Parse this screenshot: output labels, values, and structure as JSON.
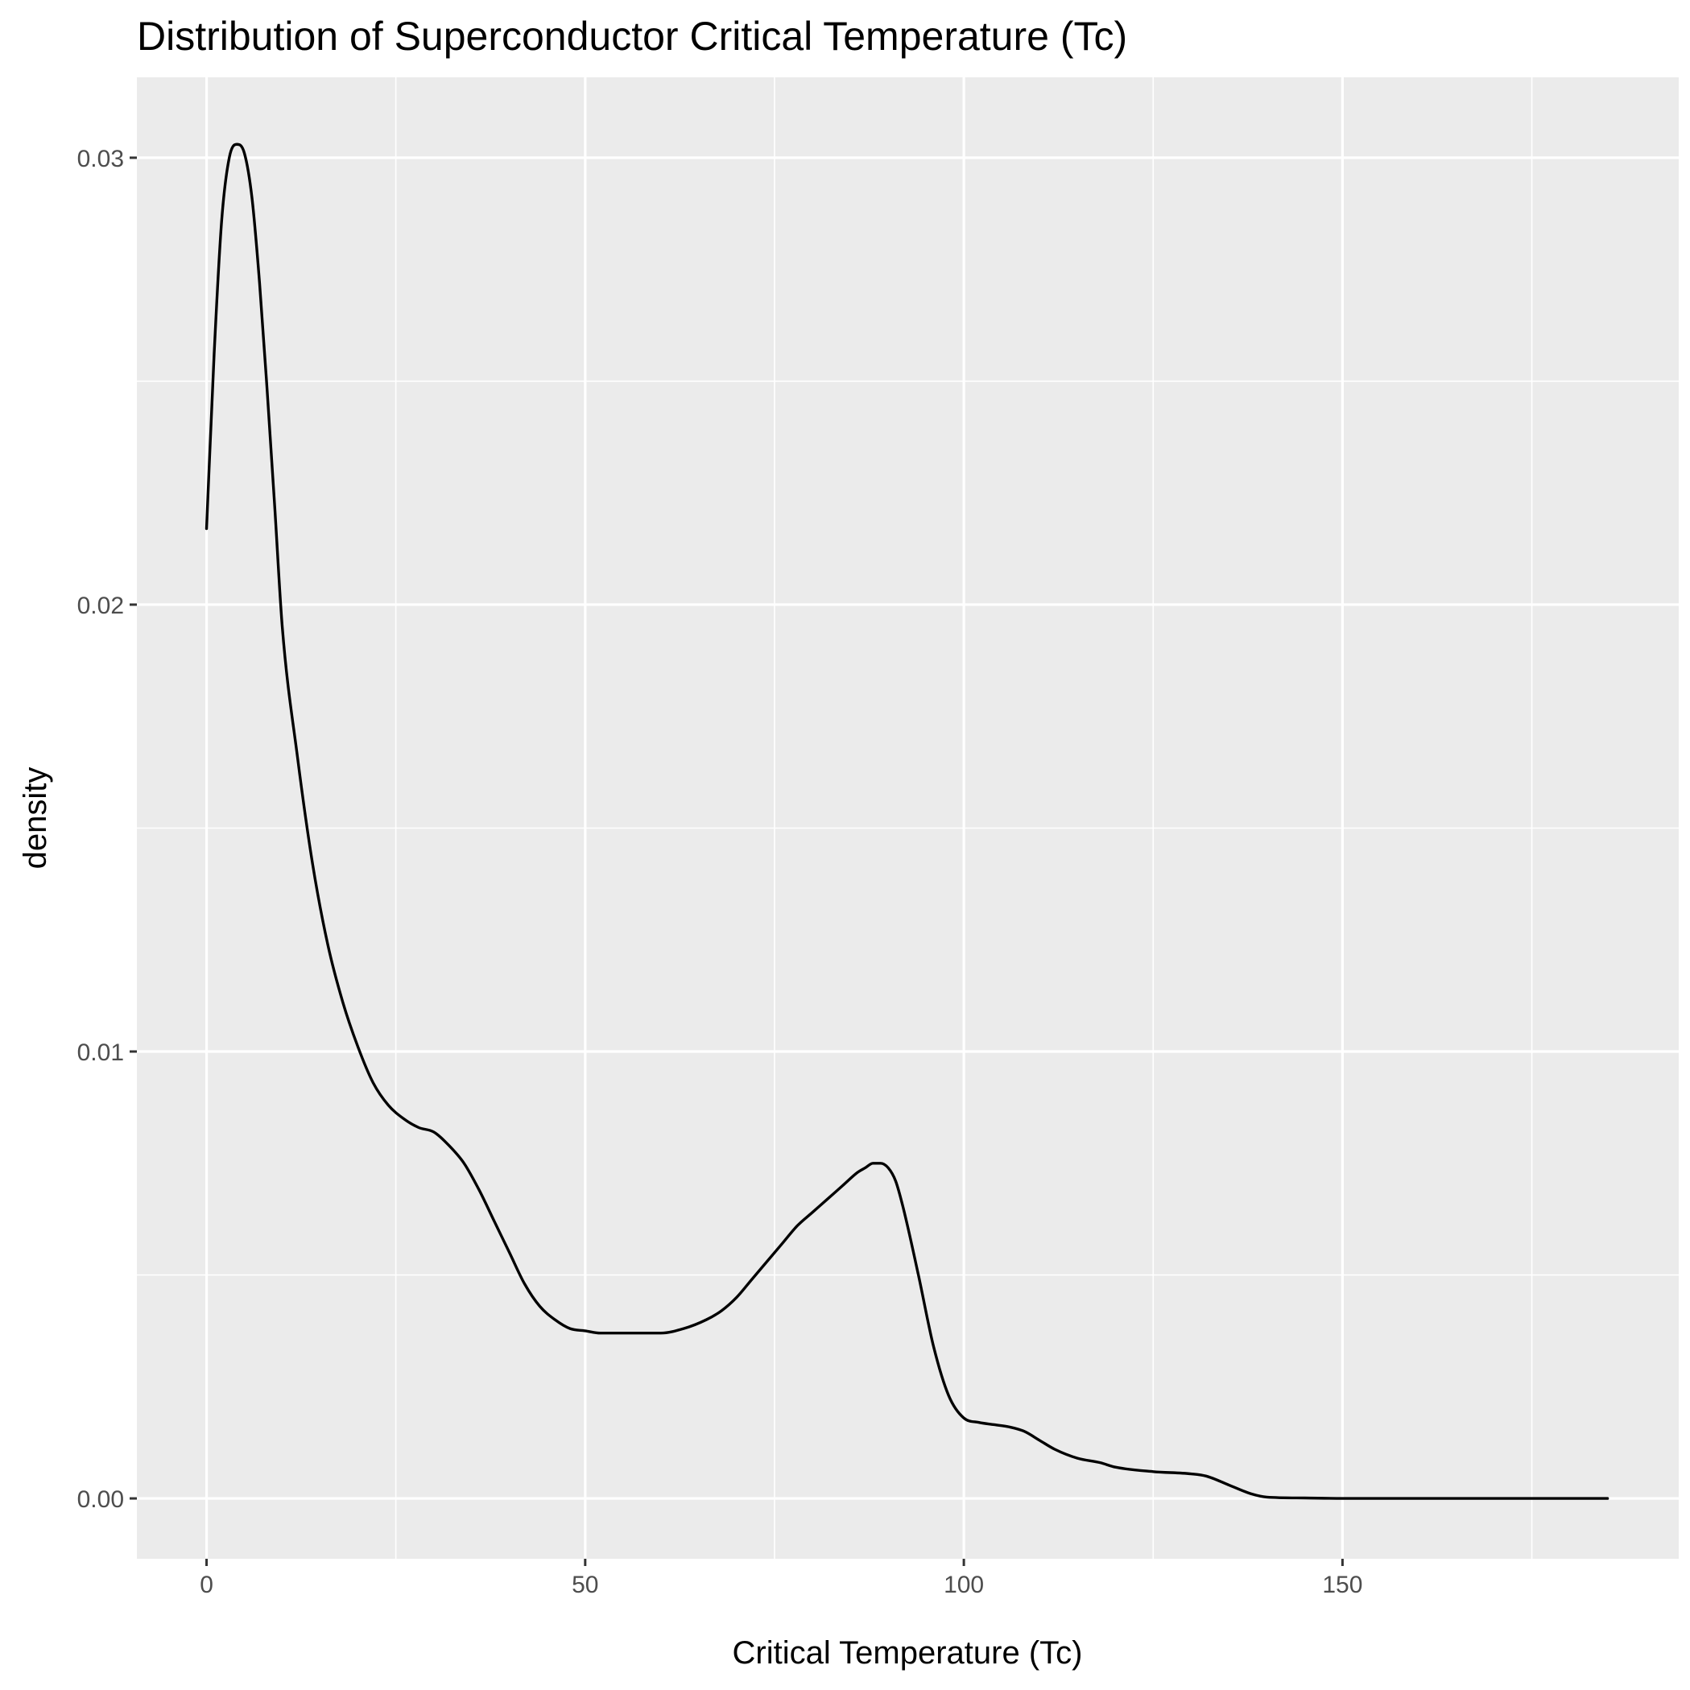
{
  "chart_data": {
    "type": "line",
    "title": "Distribution of Superconductor Critical Temperature (Tc)",
    "xlabel": "Critical Temperature (Tc)",
    "ylabel": "density",
    "xlim": [
      -9.2,
      194.4
    ],
    "ylim": [
      -0.00135,
      0.0318
    ],
    "x_ticks": [
      0,
      50,
      100,
      150
    ],
    "x_tick_labels": [
      "0",
      "50",
      "100",
      "150"
    ],
    "x_minor_ticks": [
      25,
      75,
      125,
      175
    ],
    "y_ticks": [
      0.0,
      0.01,
      0.02,
      0.03
    ],
    "y_tick_labels": [
      "0.00",
      "0.01",
      "0.02",
      "0.03"
    ],
    "y_minor_ticks": [
      0.005,
      0.015,
      0.025
    ],
    "grid": true,
    "legend": "none",
    "colors": {
      "panel": "#ebebeb",
      "grid": "#ffffff",
      "line": "#000000",
      "tick_text": "#4d4d4d"
    },
    "series": [
      {
        "x": [
          0,
          1,
          2,
          3,
          4,
          5,
          6,
          7,
          8,
          9,
          10,
          12,
          14,
          16,
          18,
          20,
          22,
          24,
          26,
          28,
          30,
          32,
          34,
          36,
          38,
          40,
          42,
          44,
          46,
          48,
          50,
          52,
          55,
          58,
          60,
          63,
          66,
          68,
          70,
          72,
          74,
          76,
          78,
          80,
          82,
          84,
          86,
          87,
          88,
          89,
          90,
          91,
          92,
          94,
          96,
          98,
          100,
          102,
          104,
          106,
          108,
          110,
          112,
          115,
          118,
          120,
          125,
          130,
          132,
          135,
          138,
          140,
          145,
          150,
          160,
          170,
          185
        ],
        "y": [
          0.0217,
          0.0256,
          0.0286,
          0.03,
          0.0303,
          0.0301,
          0.0291,
          0.0272,
          0.0248,
          0.0222,
          0.0195,
          0.0166,
          0.0142,
          0.0124,
          0.0111,
          0.0101,
          0.0093,
          0.0088,
          0.0085,
          0.0083,
          0.0082,
          0.0079,
          0.0075,
          0.0069,
          0.0062,
          0.0055,
          0.0048,
          0.0043,
          0.004,
          0.0038,
          0.00375,
          0.0037,
          0.0037,
          0.0037,
          0.0037,
          0.0038,
          0.004,
          0.0042,
          0.0045,
          0.0049,
          0.0053,
          0.0057,
          0.0061,
          0.0064,
          0.0067,
          0.007,
          0.0073,
          0.0074,
          0.0075,
          0.0075,
          0.0074,
          0.0071,
          0.0065,
          0.005,
          0.0034,
          0.0023,
          0.0018,
          0.0017,
          0.00165,
          0.0016,
          0.0015,
          0.0013,
          0.0011,
          0.0009,
          0.0008,
          0.0007,
          0.0006,
          0.00055,
          0.0005,
          0.0003,
          0.0001,
          3e-05,
          1e-05,
          0.0,
          0.0,
          0.0,
          0.0
        ]
      }
    ]
  }
}
